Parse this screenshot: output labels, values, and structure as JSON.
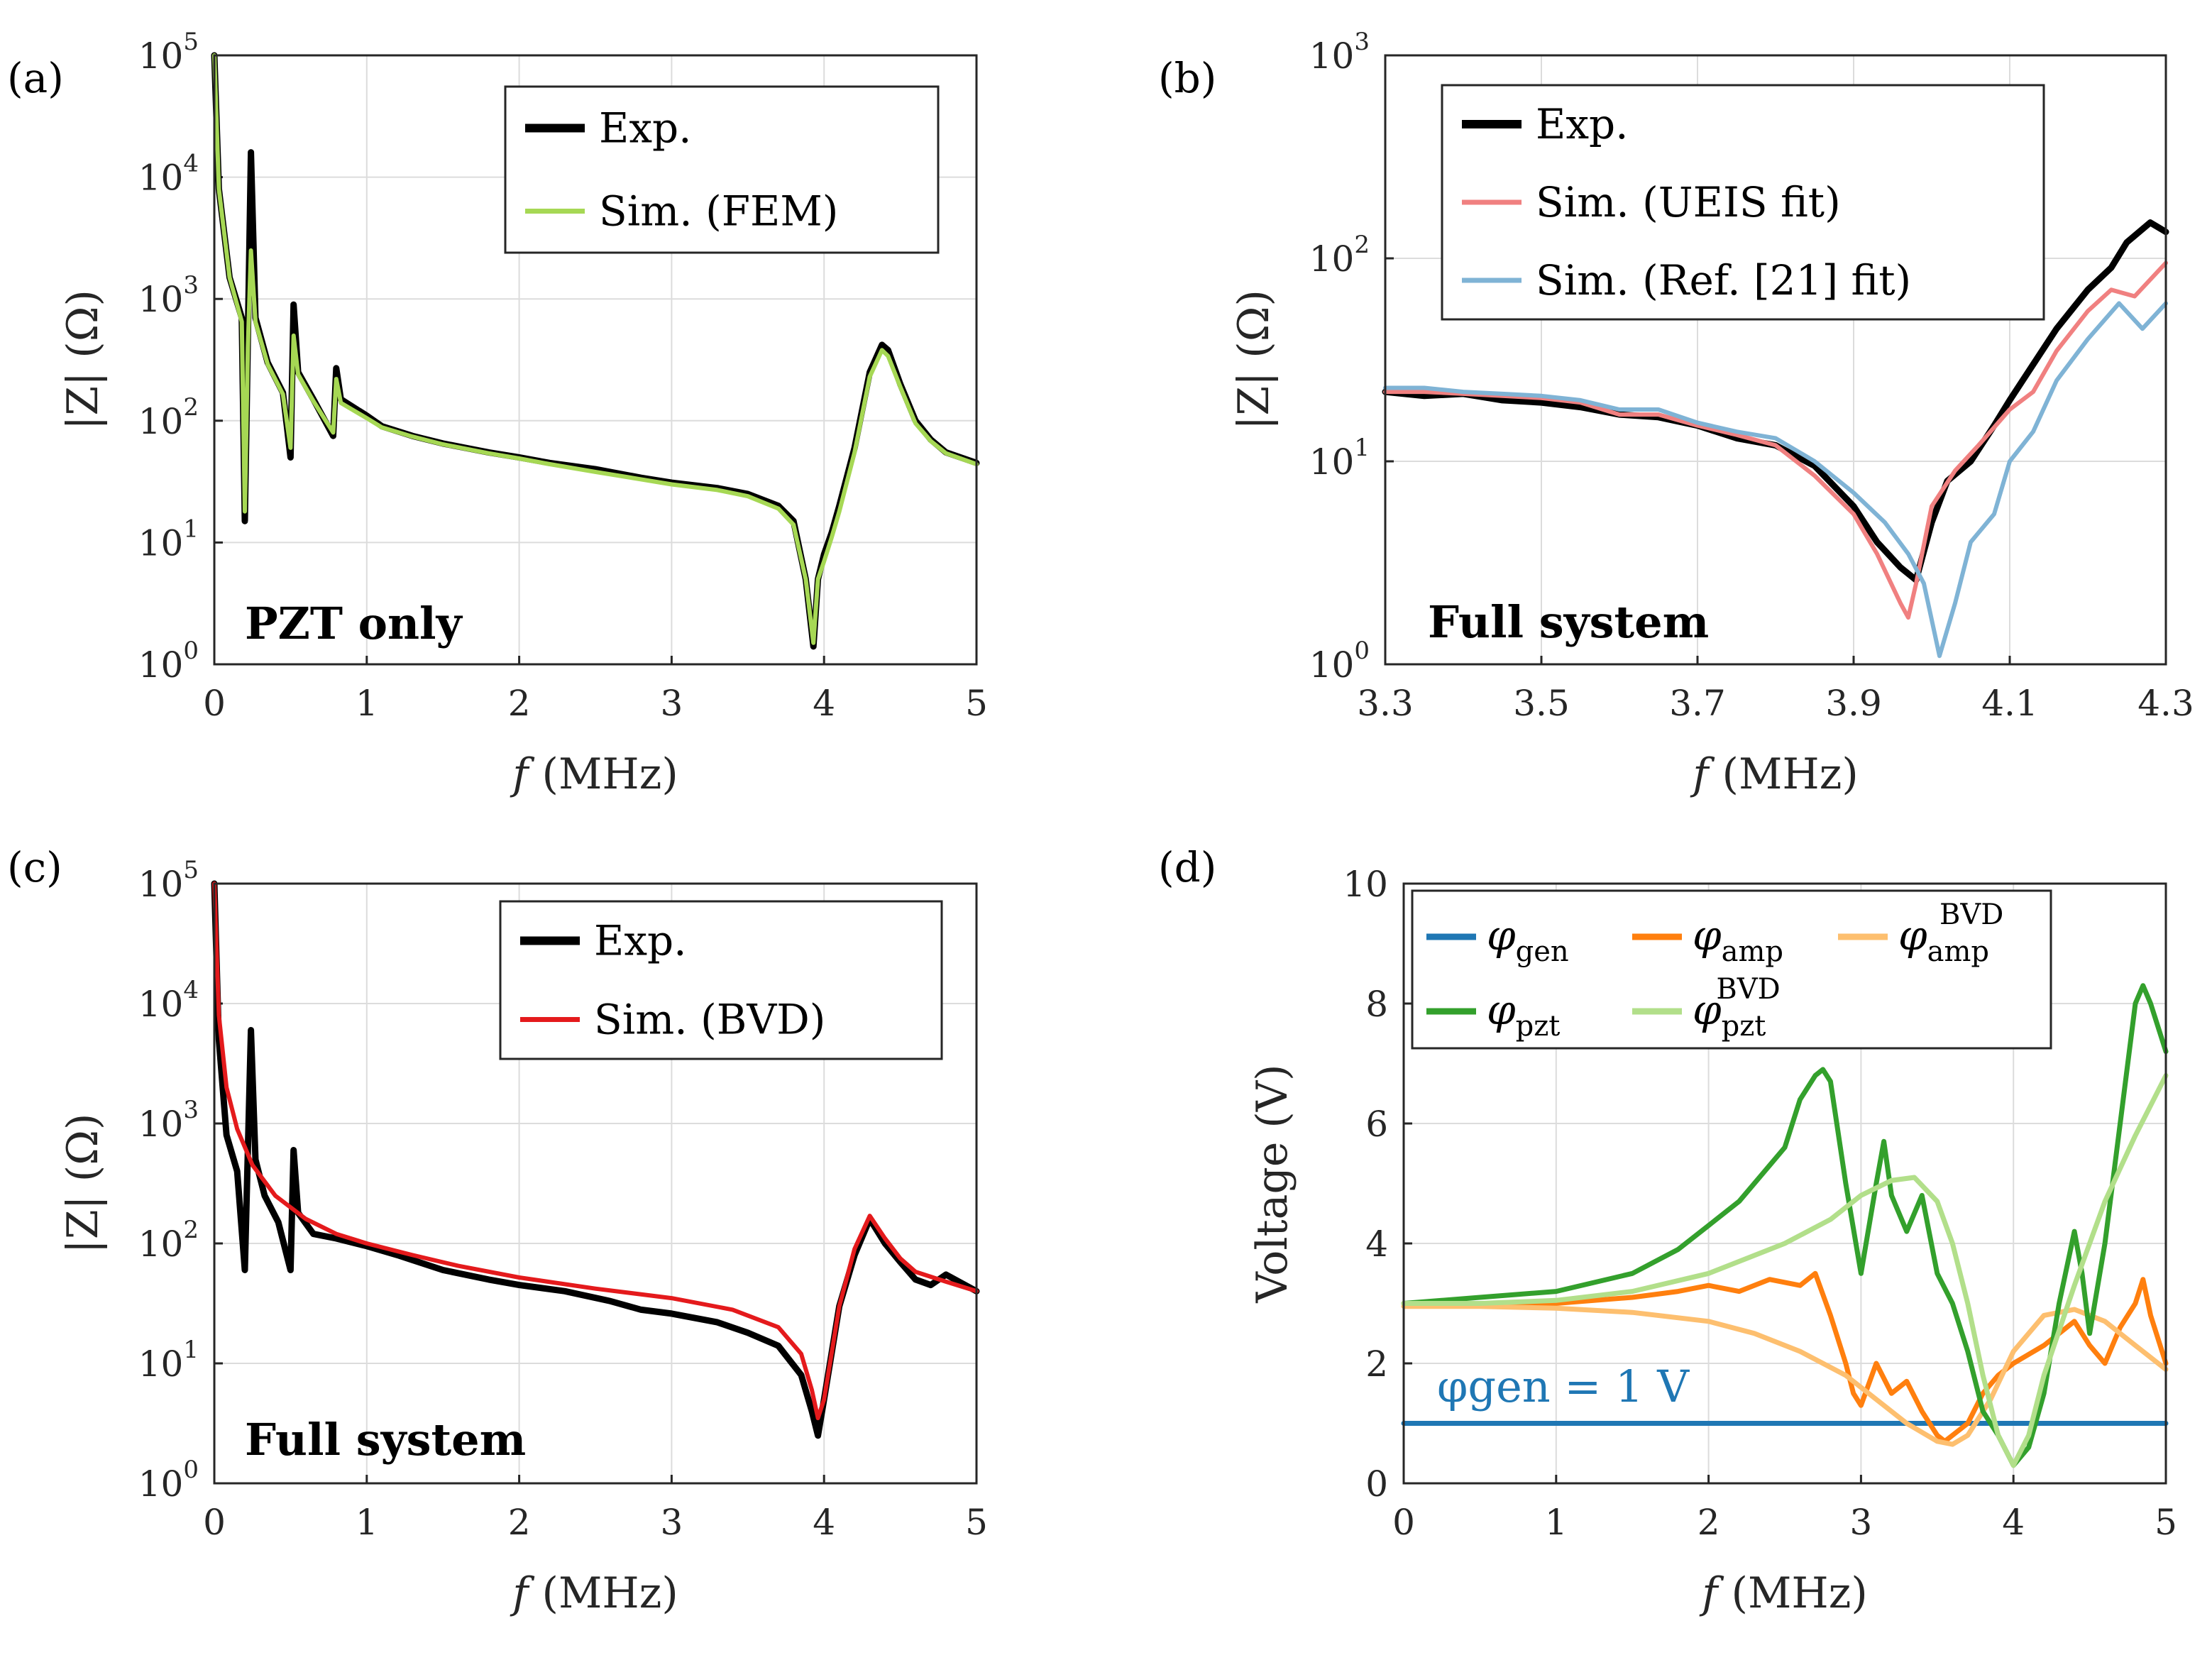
{
  "chart_data": [
    {
      "type": "line",
      "panel_label": "(a)",
      "xlabel": "f (MHz)",
      "ylabel": "|Z| (Ω)",
      "yscale": "log",
      "xlim": [
        0,
        5
      ],
      "ylim": [
        1,
        100000
      ],
      "xticks": [
        "0",
        "1",
        "2",
        "3",
        "4",
        "5"
      ],
      "yticks": [
        "10^0",
        "10^1",
        "10^2",
        "10^3",
        "10^4",
        "10^5"
      ],
      "annotation": "PZT only",
      "legend": [
        "Exp.",
        "Sim. (FEM)"
      ],
      "series": [
        {
          "name": "Exp.",
          "color": "#000000",
          "x": [
            0.0,
            0.03,
            0.1,
            0.18,
            0.2,
            0.22,
            0.24,
            0.27,
            0.35,
            0.45,
            0.5,
            0.52,
            0.55,
            0.65,
            0.78,
            0.8,
            0.83,
            1.0,
            1.1,
            1.3,
            1.5,
            1.8,
            2.0,
            2.2,
            2.5,
            2.8,
            3.0,
            3.3,
            3.5,
            3.7,
            3.8,
            3.88,
            3.93,
            3.96,
            4.0,
            4.05,
            4.1,
            4.2,
            4.3,
            4.38,
            4.42,
            4.5,
            4.6,
            4.7,
            4.8,
            5.0
          ],
          "y": [
            100000,
            8000,
            1500,
            700,
            15,
            500,
            16000,
            700,
            300,
            170,
            50,
            900,
            250,
            150,
            75,
            270,
            150,
            110,
            90,
            75,
            65,
            55,
            50,
            45,
            40,
            34,
            31,
            28,
            25,
            20,
            15,
            5,
            1.4,
            5,
            8,
            12,
            20,
            60,
            250,
            420,
            380,
            200,
            100,
            70,
            55,
            45
          ]
        },
        {
          "name": "Sim. (FEM)",
          "color": "#a6d854",
          "x": [
            0.0,
            0.03,
            0.1,
            0.18,
            0.2,
            0.22,
            0.24,
            0.27,
            0.35,
            0.45,
            0.5,
            0.52,
            0.55,
            0.65,
            0.78,
            0.8,
            0.83,
            1.0,
            1.1,
            1.3,
            1.5,
            1.8,
            2.0,
            2.2,
            2.5,
            2.8,
            3.0,
            3.3,
            3.5,
            3.7,
            3.8,
            3.88,
            3.93,
            3.96,
            4.0,
            4.05,
            4.1,
            4.2,
            4.3,
            4.38,
            4.42,
            4.5,
            4.6,
            4.7,
            4.8,
            5.0
          ],
          "y": [
            100000,
            8000,
            1500,
            650,
            18,
            400,
            2500,
            650,
            290,
            165,
            60,
            500,
            240,
            145,
            80,
            220,
            140,
            105,
            88,
            74,
            64,
            54,
            49,
            44,
            38,
            33,
            30,
            27,
            24,
            19,
            14,
            5,
            1.5,
            5,
            7,
            11,
            18,
            55,
            230,
            380,
            340,
            190,
            95,
            68,
            54,
            44
          ]
        }
      ]
    },
    {
      "type": "line",
      "panel_label": "(b)",
      "xlabel": "f (MHz)",
      "ylabel": "|Z| (Ω)",
      "yscale": "log",
      "xlim": [
        3.3,
        4.3
      ],
      "ylim": [
        1,
        1000
      ],
      "xticks": [
        "3.3",
        "3.5",
        "3.7",
        "3.9",
        "4.1",
        "4.3"
      ],
      "yticks": [
        "10^0",
        "10^1",
        "10^2",
        "10^3"
      ],
      "annotation": "Full system",
      "legend": [
        "Exp.",
        "Sim. (UEIS fit)",
        "Sim. (Ref. [21] fit)"
      ],
      "series": [
        {
          "name": "Exp.",
          "color": "#000000",
          "x": [
            3.3,
            3.35,
            3.4,
            3.45,
            3.5,
            3.55,
            3.6,
            3.65,
            3.7,
            3.75,
            3.8,
            3.85,
            3.9,
            3.93,
            3.96,
            3.98,
            4.0,
            4.02,
            4.05,
            4.08,
            4.1,
            4.13,
            4.16,
            4.2,
            4.23,
            4.25,
            4.28,
            4.3
          ],
          "y": [
            22,
            21,
            21.5,
            20,
            19.5,
            18.5,
            17,
            16.5,
            15,
            13,
            12,
            9.5,
            6,
            4,
            3,
            2.6,
            5,
            8,
            10,
            15,
            20,
            30,
            45,
            70,
            90,
            120,
            150,
            135
          ]
        },
        {
          "name": "Sim. (UEIS fit)",
          "color": "#f08080",
          "x": [
            3.3,
            3.35,
            3.4,
            3.45,
            3.5,
            3.55,
            3.6,
            3.65,
            3.7,
            3.75,
            3.8,
            3.85,
            3.9,
            3.93,
            3.96,
            3.97,
            3.98,
            4.0,
            4.03,
            4.06,
            4.1,
            4.13,
            4.16,
            4.2,
            4.23,
            4.26,
            4.3
          ],
          "y": [
            22,
            22,
            21.5,
            21,
            20.5,
            19.5,
            17,
            17,
            15,
            13.5,
            12,
            8.5,
            5.5,
            3.5,
            2,
            1.7,
            2.5,
            6,
            9,
            12,
            18,
            22,
            35,
            55,
            70,
            65,
            95
          ]
        },
        {
          "name": "Sim. (Ref. [21] fit)",
          "color": "#7fb3d5",
          "x": [
            3.3,
            3.35,
            3.4,
            3.45,
            3.5,
            3.55,
            3.6,
            3.65,
            3.7,
            3.75,
            3.8,
            3.85,
            3.9,
            3.94,
            3.97,
            3.99,
            4.01,
            4.03,
            4.05,
            4.08,
            4.1,
            4.13,
            4.16,
            4.2,
            4.24,
            4.27,
            4.3
          ],
          "y": [
            23,
            23,
            22,
            21.5,
            21,
            20,
            18,
            18,
            15.5,
            14,
            13,
            10,
            7,
            5,
            3.5,
            2.5,
            1.1,
            2,
            4,
            5.5,
            10,
            14,
            25,
            40,
            60,
            45,
            60
          ]
        }
      ]
    },
    {
      "type": "line",
      "panel_label": "(c)",
      "xlabel": "f (MHz)",
      "ylabel": "|Z| (Ω)",
      "yscale": "log",
      "xlim": [
        0,
        5
      ],
      "ylim": [
        1,
        100000
      ],
      "xticks": [
        "0",
        "1",
        "2",
        "3",
        "4",
        "5"
      ],
      "yticks": [
        "10^0",
        "10^1",
        "10^2",
        "10^3",
        "10^4",
        "10^5"
      ],
      "annotation": "Full system",
      "legend": [
        "Exp.",
        "Sim. (BVD)"
      ],
      "series": [
        {
          "name": "Exp.",
          "color": "#000000",
          "x": [
            0.0,
            0.03,
            0.08,
            0.15,
            0.2,
            0.22,
            0.24,
            0.27,
            0.33,
            0.42,
            0.5,
            0.52,
            0.55,
            0.65,
            0.8,
            1.0,
            1.2,
            1.5,
            1.8,
            2.0,
            2.3,
            2.6,
            2.8,
            3.0,
            3.3,
            3.5,
            3.7,
            3.85,
            3.92,
            3.96,
            4.0,
            4.1,
            4.2,
            4.3,
            4.4,
            4.5,
            4.6,
            4.7,
            4.8,
            5.0
          ],
          "y": [
            100000,
            5000,
            800,
            400,
            60,
            600,
            6000,
            500,
            250,
            150,
            60,
            600,
            180,
            120,
            110,
            95,
            80,
            60,
            50,
            45,
            40,
            33,
            28,
            26,
            22,
            18,
            14,
            8,
            4,
            2.5,
            5,
            30,
            80,
            160,
            100,
            70,
            50,
            45,
            55,
            40
          ]
        },
        {
          "name": "Sim. (BVD)",
          "color": "#e41a1c",
          "x": [
            0.0,
            0.03,
            0.08,
            0.15,
            0.25,
            0.4,
            0.6,
            0.8,
            1.0,
            1.3,
            1.6,
            2.0,
            2.5,
            3.0,
            3.4,
            3.7,
            3.85,
            3.92,
            3.96,
            4.0,
            4.1,
            4.2,
            4.3,
            4.4,
            4.5,
            4.6,
            4.8,
            5.0
          ],
          "y": [
            100000,
            8000,
            2000,
            900,
            450,
            250,
            160,
            120,
            100,
            80,
            65,
            52,
            42,
            35,
            28,
            20,
            12,
            6,
            3.5,
            5,
            30,
            90,
            170,
            110,
            75,
            58,
            48,
            40
          ]
        }
      ]
    },
    {
      "type": "line",
      "panel_label": "(d)",
      "xlabel": "f (MHz)",
      "ylabel": "Voltage (V)",
      "yscale": "linear",
      "xlim": [
        0,
        5
      ],
      "ylim": [
        0,
        10
      ],
      "xticks": [
        "0",
        "1",
        "2",
        "3",
        "4",
        "5"
      ],
      "yticks": [
        "0",
        "2",
        "4",
        "6",
        "8",
        "10"
      ],
      "annotation": "φgen = 1 V",
      "legend": [
        "φgen",
        "φamp",
        "φamp BVD",
        "φpzt",
        "φpzt BVD"
      ],
      "series": [
        {
          "name": "φgen",
          "color": "#1f77b4",
          "x": [
            0,
            5
          ],
          "y": [
            1,
            1
          ]
        },
        {
          "name": "φamp",
          "color": "#ff7f0e",
          "x": [
            0,
            0.5,
            1.0,
            1.5,
            1.8,
            2.0,
            2.2,
            2.4,
            2.6,
            2.7,
            2.8,
            2.9,
            2.95,
            3.0,
            3.1,
            3.2,
            3.3,
            3.4,
            3.5,
            3.55,
            3.6,
            3.7,
            3.8,
            3.9,
            4.0,
            4.2,
            4.4,
            4.5,
            4.6,
            4.7,
            4.8,
            4.85,
            4.9,
            5.0
          ],
          "y": [
            3,
            3,
            3,
            3.1,
            3.2,
            3.3,
            3.2,
            3.4,
            3.3,
            3.5,
            2.8,
            2.0,
            1.5,
            1.3,
            2.0,
            1.5,
            1.7,
            1.2,
            0.8,
            0.7,
            0.8,
            1.0,
            1.5,
            1.8,
            2.0,
            2.3,
            2.7,
            2.3,
            2.0,
            2.6,
            3.0,
            3.4,
            2.8,
            2.0
          ]
        },
        {
          "name": "φamp BVD",
          "color": "#fdbf6f",
          "x": [
            0,
            0.5,
            1.0,
            1.5,
            2.0,
            2.3,
            2.6,
            2.9,
            3.1,
            3.3,
            3.5,
            3.6,
            3.7,
            3.85,
            4.0,
            4.2,
            4.4,
            4.6,
            4.8,
            5.0
          ],
          "y": [
            2.95,
            2.95,
            2.92,
            2.85,
            2.7,
            2.5,
            2.2,
            1.8,
            1.4,
            1.0,
            0.7,
            0.65,
            0.8,
            1.4,
            2.2,
            2.8,
            2.9,
            2.7,
            2.3,
            1.9
          ]
        },
        {
          "name": "φpzt",
          "color": "#33a02c",
          "x": [
            0,
            0.5,
            1.0,
            1.5,
            1.8,
            2.0,
            2.2,
            2.4,
            2.5,
            2.6,
            2.7,
            2.75,
            2.8,
            2.9,
            3.0,
            3.1,
            3.15,
            3.2,
            3.3,
            3.4,
            3.5,
            3.6,
            3.7,
            3.8,
            3.9,
            4.0,
            4.1,
            4.2,
            4.3,
            4.4,
            4.45,
            4.5,
            4.6,
            4.7,
            4.8,
            4.85,
            4.9,
            5.0
          ],
          "y": [
            3.0,
            3.1,
            3.2,
            3.5,
            3.9,
            4.3,
            4.7,
            5.3,
            5.6,
            6.4,
            6.8,
            6.9,
            6.7,
            5.0,
            3.5,
            5.0,
            5.7,
            4.8,
            4.2,
            4.8,
            3.5,
            3.0,
            2.2,
            1.2,
            0.8,
            0.3,
            0.6,
            1.5,
            3.0,
            4.2,
            3.5,
            2.5,
            4.0,
            6.0,
            8.0,
            8.3,
            8.0,
            7.2
          ]
        },
        {
          "name": "φpzt BVD",
          "color": "#b2df8a",
          "x": [
            0,
            0.5,
            1.0,
            1.5,
            2.0,
            2.5,
            2.8,
            3.0,
            3.2,
            3.35,
            3.5,
            3.6,
            3.7,
            3.8,
            3.9,
            4.0,
            4.1,
            4.2,
            4.4,
            4.6,
            4.8,
            5.0
          ],
          "y": [
            3.0,
            3.0,
            3.05,
            3.2,
            3.5,
            4.0,
            4.4,
            4.8,
            5.05,
            5.1,
            4.7,
            4.0,
            3.0,
            1.8,
            0.8,
            0.3,
            0.8,
            1.8,
            3.3,
            4.7,
            5.8,
            6.8
          ]
        }
      ]
    }
  ]
}
